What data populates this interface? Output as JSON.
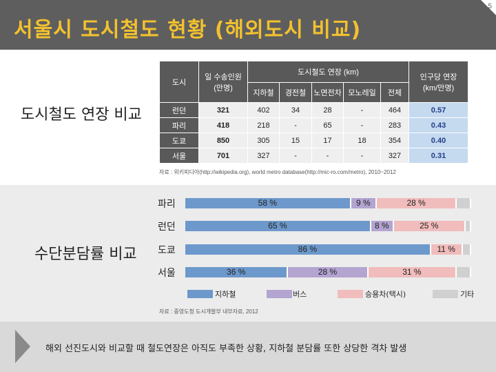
{
  "page": {
    "title": "서울시 도시철도 현황 (해외도시 비교)",
    "page_number": "5"
  },
  "table_section": {
    "label": "도시철도 연장 비교"
  },
  "table": {
    "header_city": "도시",
    "header_pop": "일 수송인원\n(만명)",
    "header_length": "도시철도 연장 (km)",
    "header_per_pop": "인구당 연장\n(km/만명)",
    "sub_headers": [
      "지하철",
      "경전철",
      "노면전차",
      "모노레일",
      "전체"
    ],
    "rows": [
      {
        "city": "런던",
        "pop": "321",
        "vals": [
          "402",
          "34",
          "28",
          "-",
          "464"
        ],
        "per_pop": "0.57"
      },
      {
        "city": "파리",
        "pop": "418",
        "vals": [
          "218",
          "-",
          "65",
          "-",
          "283"
        ],
        "per_pop": "0.43"
      },
      {
        "city": "도쿄",
        "pop": "850",
        "vals": [
          "305",
          "15",
          "17",
          "18",
          "354"
        ],
        "per_pop": "0.40"
      },
      {
        "city": "서울",
        "pop": "701",
        "vals": [
          "327",
          "-",
          "-",
          "-",
          "327"
        ],
        "per_pop": "0.31"
      }
    ],
    "source": "자료 : 위키피디아(http://wikipedia.org), world metro database(http://mic-ro.com/metro), 2010~2012"
  },
  "chart_section": {
    "label": "수단분담률 비교"
  },
  "chart_data": {
    "type": "bar",
    "stacked": true,
    "orientation": "horizontal",
    "categories": [
      "파리",
      "런던",
      "도쿄",
      "서울"
    ],
    "series": [
      {
        "name": "지하철",
        "color": "#6d98cb",
        "values": [
          58,
          65,
          86,
          36
        ],
        "labels": [
          "58 %",
          "65 %",
          "86 %",
          "36 %"
        ]
      },
      {
        "name": "버스",
        "color": "#b3a4d0",
        "values": [
          9,
          8,
          0,
          28
        ],
        "labels": [
          "9 %",
          "8 %",
          "",
          "28 %"
        ]
      },
      {
        "name": "승용차(택시)",
        "color": "#f1bcbc",
        "values": [
          28,
          25,
          11,
          31
        ],
        "labels": [
          "28 %",
          "25 %",
          "11 %",
          "31 %"
        ]
      },
      {
        "name": "기타",
        "color": "#d0d0d0",
        "values": [
          5,
          2,
          3,
          5
        ],
        "labels": [
          "",
          "",
          "",
          ""
        ]
      }
    ],
    "xlim": [
      0,
      100
    ],
    "legend": "bottom",
    "source": "자료 : 중영도청 도시개발부 내부자료, 2012"
  },
  "footer": {
    "text": "해외 선진도시와 비교할 때 철도연장은 아직도 부족한 상황, 지하철 분담률 또한 상당한 격차 발생"
  }
}
